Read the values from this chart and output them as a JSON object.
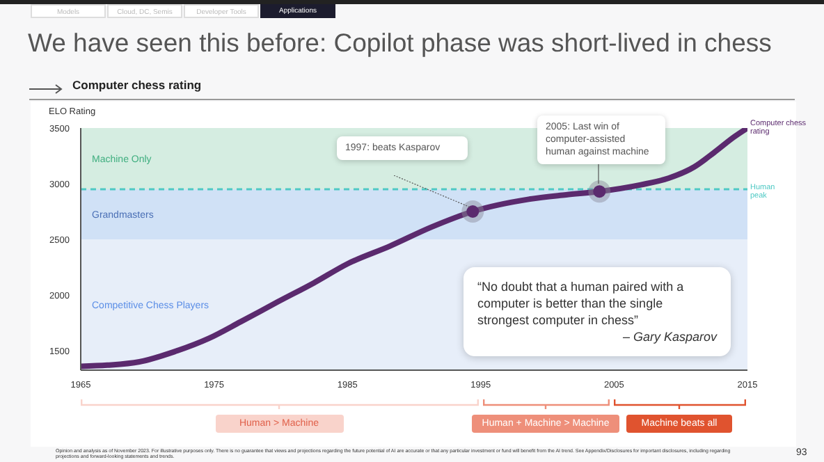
{
  "chart_data": {
    "type": "line",
    "title": "We have seen this before: Copilot phase was short-lived in chess",
    "subtitle": "Computer chess rating",
    "ylabel": "ELO Rating",
    "xlim": [
      1965,
      2015
    ],
    "xticks": [
      1965,
      1975,
      1985,
      1995,
      2005,
      2015
    ],
    "ylim": [
      1325,
      3500
    ],
    "yticks": [
      1500,
      2000,
      2500,
      3000,
      3500
    ],
    "series": [
      {
        "name": "Computer chess rating",
        "type": "line",
        "color": "#5b2a6e",
        "x": [
          1965,
          1967,
          1969.4,
          1972,
          1974.6,
          1977,
          1979.8,
          1982.5,
          1985,
          1988.2,
          1991.3,
          1994.4,
          1998.6,
          2001.4,
          2003.9,
          2007,
          2009.1,
          2011,
          2012.5,
          2014,
          2015
        ],
        "values": [
          1360,
          1370,
          1400,
          1490,
          1610,
          1760,
          1940,
          2110,
          2280,
          2440,
          2610,
          2750,
          2860,
          2900,
          2930,
          2990,
          3050,
          3150,
          3280,
          3420,
          3500
        ]
      },
      {
        "type": "scatter",
        "color": "#5b2a6e",
        "x": [
          1994.4,
          2003.9
        ],
        "values": [
          2750,
          2930
        ],
        "marker": "circle"
      }
    ],
    "bands": [
      {
        "axis": "y",
        "from": 2950,
        "to": 3500,
        "label": "Machine Only",
        "color": "#d5ede1"
      },
      {
        "axis": "y",
        "from": 2500,
        "to": 2950,
        "label": "Grandmasters",
        "color": "#d0e1f6"
      },
      {
        "axis": "y",
        "from": 1325,
        "to": 2500,
        "label": "Competitive Chess Players",
        "color": "#e7eef9"
      }
    ],
    "ref_lines": [
      {
        "axis": "y",
        "value": 2950,
        "label": "Human peak",
        "color": "#4fc9c4",
        "line_style": "dashed"
      }
    ],
    "annotations": [
      "1997: beats Kasparov",
      "2005: Last win of computer-assisted human against machine",
      "“No doubt that a human paired with a computer is better than the single strongest computer in chess”",
      "– Gary Kasparov",
      "Models",
      "Cloud, DC, Semis",
      "Developer Tools",
      "Applications",
      "Opinion and analysis as of November 2023. For illustrative purposes only. There is no guarantee that views and projections regarding the future potential of AI are accurate or that any particular investment or fund will benefit from the AI trend. See Appendix/Disclosures for important disclosures, including regarding projections and forward-looking statements and trends.",
      "93",
      "Human > Machine",
      "Human + Machine > Machine",
      "Machine beats all"
    ],
    "legend": false
  }
}
